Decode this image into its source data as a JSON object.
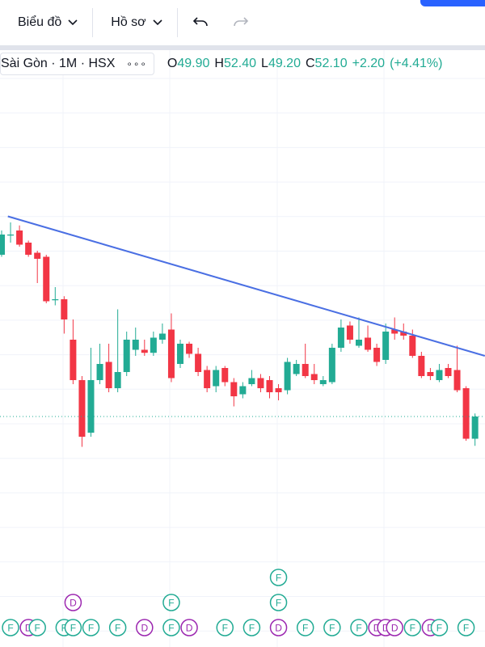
{
  "toolbar": {
    "chart_menu": "Biểu đồ",
    "profile_menu": "Hồ sơ"
  },
  "chart_data": {
    "type": "candlestick",
    "symbol": "Sài Gòn · 1M · HSX",
    "legend_values": [
      {
        "prefix": "O",
        "label": "49.90"
      },
      {
        "prefix": "H",
        "label": "52.40"
      },
      {
        "prefix": "L",
        "label": "49.20"
      },
      {
        "prefix": "C",
        "label": "52.10"
      }
    ],
    "change": "+2.20",
    "change_pct": "(+4.41%)",
    "up_color": "#22ab94",
    "down_color": "#f23645",
    "ylim": [
      32.5,
      85.7
    ],
    "open": [
      68.1,
      70.0,
      70.5,
      69.3,
      68.3,
      67.9,
      63.6,
      63.7,
      59.7,
      55.7,
      50.5,
      55.7,
      57.5,
      54.9,
      56.5,
      58.7,
      58.7,
      58.4,
      59.7,
      60.7,
      57.3,
      59.3,
      58.3,
      56.7,
      55.1,
      56.9,
      55.5,
      54.3,
      55.3,
      55.9,
      55.7,
      54.9,
      54.7,
      56.3,
      57.3,
      56.3,
      55.3,
      55.5,
      58.9,
      61.1,
      59.1,
      59.9,
      58.9,
      57.7,
      60.7,
      60.5,
      60.1,
      58.1,
      56.5,
      55.7,
      56.9,
      56.7,
      54.9,
      49.9
    ],
    "high": [
      70.5,
      71.3,
      71.0,
      69.5,
      68.5,
      68.1,
      64.9,
      64.0,
      61.7,
      56.1,
      58.9,
      59.3,
      59.3,
      62.7,
      60.5,
      60.9,
      59.7,
      60.5,
      61.3,
      62.3,
      59.7,
      59.5,
      58.9,
      57.1,
      57.1,
      57.1,
      55.9,
      55.5,
      56.7,
      56.3,
      56.1,
      55.3,
      57.9,
      57.7,
      59.3,
      57.3,
      56.1,
      59.3,
      61.7,
      61.5,
      61.9,
      61.1,
      59.3,
      61.3,
      61.9,
      61.3,
      60.7,
      58.5,
      56.9,
      57.3,
      57.3,
      59.1,
      55.1,
      52.4
    ],
    "low": [
      67.9,
      69.3,
      68.9,
      67.9,
      65.3,
      63.3,
      63.1,
      60.3,
      55.3,
      49.1,
      50.1,
      55.3,
      54.5,
      54.5,
      56.1,
      58.1,
      58.1,
      58.1,
      59.3,
      55.5,
      56.9,
      57.9,
      56.1,
      54.5,
      54.5,
      55.1,
      53.1,
      53.9,
      55.1,
      54.5,
      53.9,
      53.7,
      54.3,
      56.1,
      55.9,
      55.3,
      55.1,
      55.3,
      58.5,
      59.3,
      58.9,
      58.5,
      57.1,
      57.3,
      59.7,
      59.7,
      57.9,
      55.9,
      55.7,
      55.5,
      55.9,
      54.5,
      49.7,
      49.2
    ],
    "close": [
      70.1,
      70.1,
      69.1,
      68.1,
      67.7,
      63.5,
      63.7,
      61.7,
      55.7,
      50.1,
      55.7,
      57.3,
      54.9,
      56.5,
      59.7,
      59.7,
      58.4,
      59.9,
      60.3,
      55.9,
      59.3,
      58.3,
      56.5,
      54.9,
      56.7,
      55.5,
      54.1,
      55.1,
      55.9,
      54.9,
      54.5,
      54.5,
      57.5,
      57.3,
      56.1,
      55.7,
      55.7,
      58.9,
      60.9,
      59.7,
      59.7,
      58.7,
      57.5,
      60.5,
      60.3,
      60.1,
      58.1,
      56.1,
      56.1,
      56.7,
      56.1,
      54.7,
      49.9,
      52.1
    ],
    "trendline": {
      "color": "#4a6fe3",
      "start": [
        0.7,
        71.9
      ],
      "end": [
        54.1,
        58.1
      ]
    },
    "price_line": true,
    "event_colors": {
      "F": "#22ab94",
      "D": "#9c27b0"
    },
    "events": [
      {
        "label": "F",
        "bar": 1,
        "row": 0
      },
      {
        "label": "D",
        "bar": 3,
        "row": 0
      },
      {
        "label": "F",
        "bar": 4,
        "row": 0
      },
      {
        "label": "F",
        "bar": 7,
        "row": 0
      },
      {
        "label": "F",
        "bar": 8,
        "row": 0
      },
      {
        "label": "F",
        "bar": 10,
        "row": 0
      },
      {
        "label": "F",
        "bar": 13,
        "row": 0
      },
      {
        "label": "D",
        "bar": 16,
        "row": 0
      },
      {
        "label": "F",
        "bar": 19,
        "row": 0
      },
      {
        "label": "D",
        "bar": 21,
        "row": 0
      },
      {
        "label": "F",
        "bar": 25,
        "row": 0
      },
      {
        "label": "F",
        "bar": 28,
        "row": 0
      },
      {
        "label": "D",
        "bar": 31,
        "row": 0
      },
      {
        "label": "F",
        "bar": 34,
        "row": 0
      },
      {
        "label": "F",
        "bar": 37,
        "row": 0
      },
      {
        "label": "F",
        "bar": 40,
        "row": 0
      },
      {
        "label": "D",
        "bar": 42,
        "row": 0
      },
      {
        "label": "D",
        "bar": 43,
        "row": 0
      },
      {
        "label": "D",
        "bar": 44,
        "row": 0
      },
      {
        "label": "F",
        "bar": 46,
        "row": 0
      },
      {
        "label": "D",
        "bar": 48,
        "row": 0
      },
      {
        "label": "F",
        "bar": 49,
        "row": 0
      },
      {
        "label": "F",
        "bar": 52,
        "row": 0
      },
      {
        "label": "D",
        "bar": 8,
        "row": 1
      },
      {
        "label": "F",
        "bar": 19,
        "row": 1
      },
      {
        "label": "F",
        "bar": 31,
        "row": 1
      },
      {
        "label": "F",
        "bar": 31,
        "row": 2
      }
    ]
  }
}
